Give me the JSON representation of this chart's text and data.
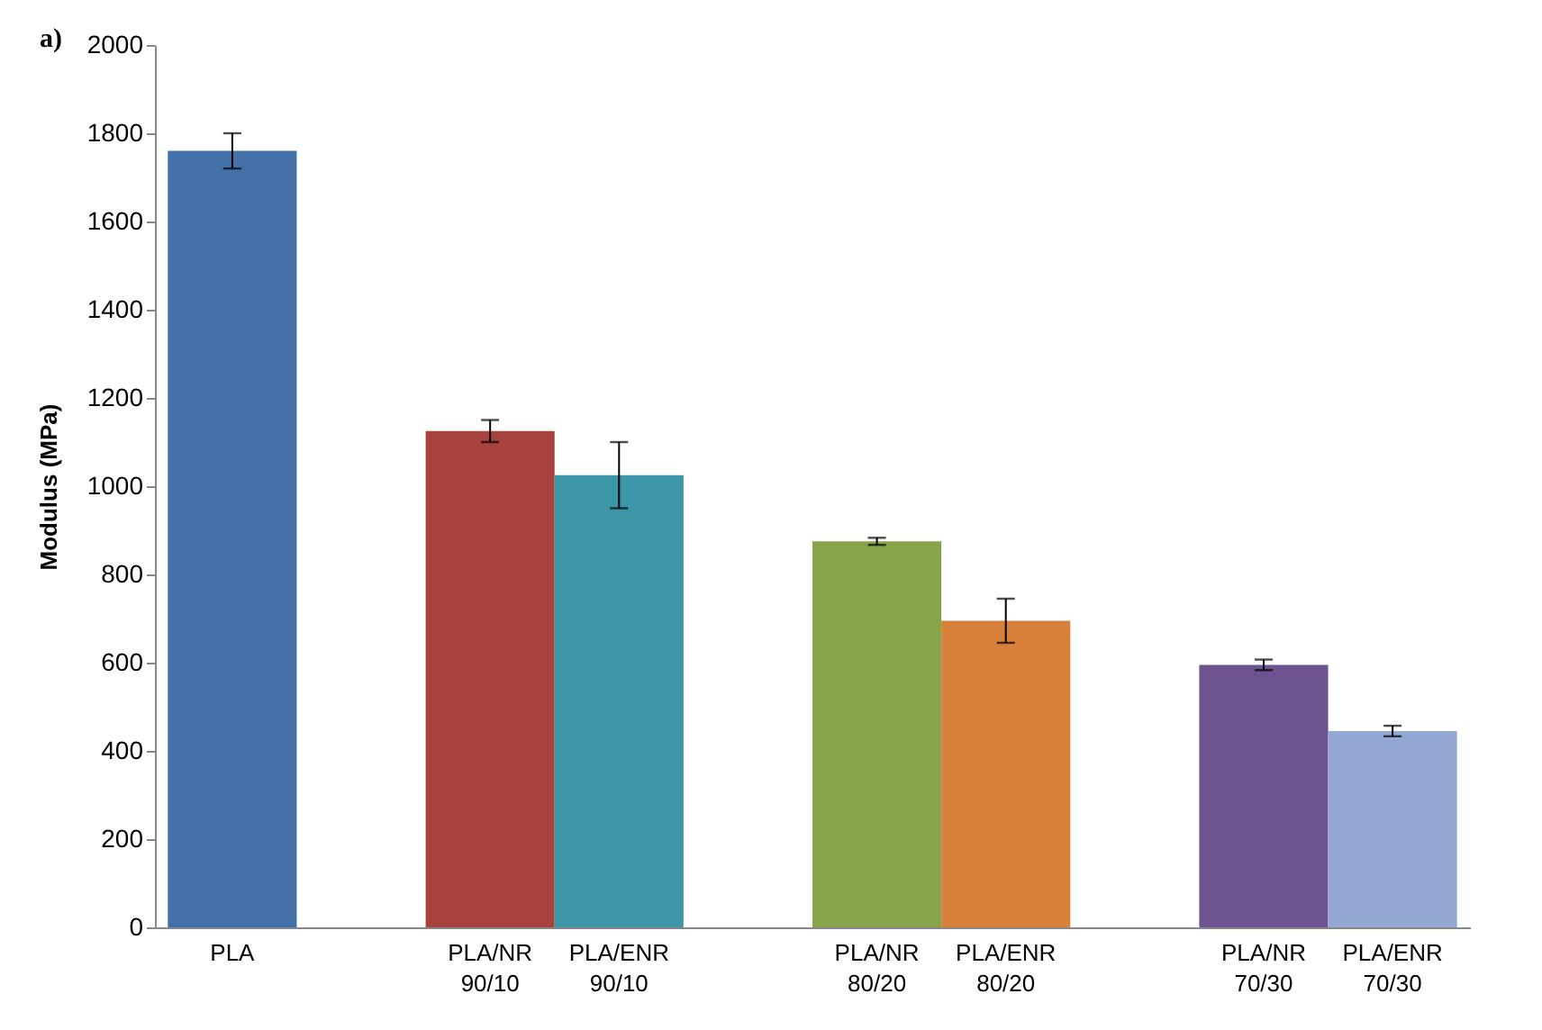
{
  "chart_data": {
    "type": "bar",
    "ylabel": "Modulus (MPa)",
    "annotations": [
      "a)"
    ],
    "categories": [
      "PLA",
      null,
      "PLA/NR 90/10",
      "PLA/ENR 90/10",
      null,
      "PLA/NR 80/20",
      "PLA/ENR 80/20",
      null,
      "PLA/NR 70/30",
      "PLA/ENR 70/30"
    ],
    "values": [
      1760,
      null,
      1125,
      1025,
      null,
      875,
      695,
      null,
      595,
      445
    ],
    "errors": [
      40,
      null,
      25,
      75,
      null,
      8,
      50,
      null,
      12,
      12
    ],
    "colors": [
      "#4470a8",
      null,
      "#a8423f",
      "#3e97a8",
      null,
      "#86a44a",
      "#d87f3a",
      null,
      "#6d5491",
      "#93a9d3"
    ],
    "ylim": [
      0,
      2000
    ],
    "yticks": [
      0,
      200,
      400,
      600,
      800,
      1000,
      1200,
      1400,
      1600,
      1800,
      2000
    ],
    "grid": false,
    "legend": false
  }
}
